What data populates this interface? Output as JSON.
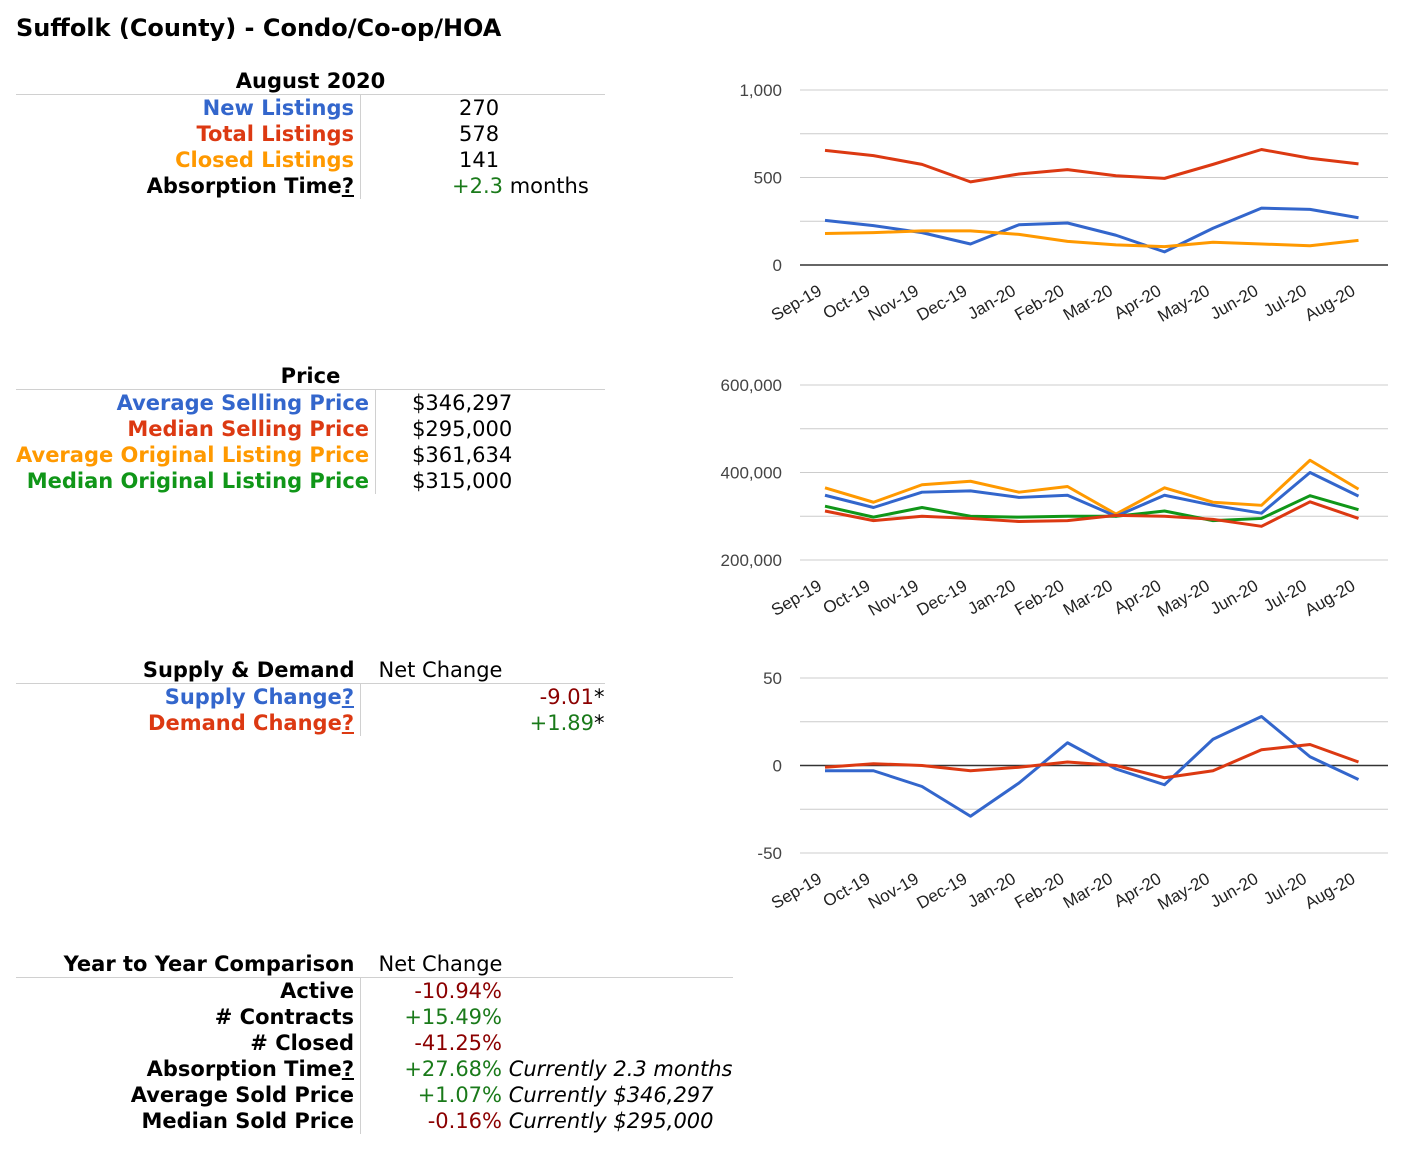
{
  "page_title": "Suffolk (County) - Condo/Co-op/HOA",
  "listings": {
    "header": "August 2020",
    "rows": [
      {
        "label": "New Listings",
        "value": "270"
      },
      {
        "label": "Total Listings",
        "value": "578"
      },
      {
        "label": "Closed Listings",
        "value": "141"
      }
    ],
    "absorption": {
      "label": "Absorption Time",
      "q": "?",
      "value": "+2.3",
      "unit": "months"
    }
  },
  "price": {
    "header": "Price",
    "rows": [
      {
        "label": "Average Selling Price",
        "value": "$346,297"
      },
      {
        "label": "Median Selling Price",
        "value": "$295,000"
      },
      {
        "label": "Average Original Listing Price",
        "value": "$361,634"
      },
      {
        "label": "Median Original Listing Price",
        "value": "$315,000"
      }
    ]
  },
  "supply_demand": {
    "header": "Supply & Demand",
    "net_header": "Net Change",
    "rows": [
      {
        "label": "Supply Change",
        "q": "?",
        "value": "-9.01",
        "star": "*"
      },
      {
        "label": "Demand Change",
        "q": "?",
        "value": "+1.89",
        "star": "*"
      }
    ]
  },
  "yoy": {
    "header": "Year to Year Comparison",
    "net_header": "Net Change",
    "rows": [
      {
        "label": "Active",
        "q": "",
        "value": "-10.94%",
        "note": ""
      },
      {
        "label": "# Contracts",
        "q": "",
        "value": "+15.49%",
        "note": ""
      },
      {
        "label": "# Closed",
        "q": "",
        "value": "-41.25%",
        "note": ""
      },
      {
        "label": "Absorption Time",
        "q": "?",
        "value": "+27.68%",
        "note": "Currently 2.3 months"
      },
      {
        "label": "Average Sold Price",
        "q": "",
        "value": "+1.07%",
        "note": "Currently $346,297"
      },
      {
        "label": "Median Sold Price",
        "q": "",
        "value": "-0.16%",
        "note": "Currently $295,000"
      }
    ]
  },
  "colors": {
    "blue": "#3366cc",
    "red": "#dc3912",
    "orange": "#ff9900",
    "green": "#109618"
  },
  "chart_data": [
    {
      "type": "line",
      "categories": [
        "Sep-19",
        "Oct-19",
        "Nov-19",
        "Dec-19",
        "Jan-20",
        "Feb-20",
        "Mar-20",
        "Apr-20",
        "May-20",
        "Jun-20",
        "Jul-20",
        "Aug-20"
      ],
      "ylim": [
        0,
        1000
      ],
      "yticks": [
        0,
        500,
        1000
      ],
      "ytick_labels": [
        "0",
        "500",
        "1,000"
      ],
      "grid": true,
      "series": [
        {
          "color": "#dc3912",
          "values": [
            655,
            625,
            575,
            475,
            520,
            545,
            510,
            495,
            575,
            660,
            610,
            578
          ]
        },
        {
          "color": "#3366cc",
          "values": [
            255,
            225,
            185,
            120,
            230,
            240,
            170,
            75,
            210,
            325,
            318,
            270
          ]
        },
        {
          "color": "#ff9900",
          "values": [
            180,
            185,
            195,
            195,
            175,
            135,
            115,
            105,
            130,
            120,
            110,
            141
          ]
        }
      ]
    },
    {
      "type": "line",
      "categories": [
        "Sep-19",
        "Oct-19",
        "Nov-19",
        "Dec-19",
        "Jan-20",
        "Feb-20",
        "Mar-20",
        "Apr-20",
        "May-20",
        "Jun-20",
        "Jul-20",
        "Aug-20"
      ],
      "ylim": [
        200000,
        600000
      ],
      "yticks": [
        200000,
        400000,
        600000
      ],
      "ytick_labels": [
        "200,000",
        "400,000",
        "600,000"
      ],
      "grid": true,
      "series": [
        {
          "color": "#ff9900",
          "values": [
            365000,
            332000,
            372000,
            380000,
            355000,
            368000,
            305000,
            365000,
            332000,
            325000,
            428000,
            362000
          ]
        },
        {
          "color": "#3366cc",
          "values": [
            348000,
            320000,
            355000,
            358000,
            343000,
            348000,
            300000,
            348000,
            325000,
            307000,
            400000,
            346000
          ]
        },
        {
          "color": "#109618",
          "values": [
            323000,
            298000,
            320000,
            300000,
            298000,
            300000,
            300000,
            312000,
            290000,
            295000,
            347000,
            315000
          ]
        },
        {
          "color": "#dc3912",
          "values": [
            312000,
            290000,
            300000,
            295000,
            288000,
            290000,
            302000,
            300000,
            293000,
            277000,
            333000,
            295000
          ]
        }
      ]
    },
    {
      "type": "line",
      "categories": [
        "Sep-19",
        "Oct-19",
        "Nov-19",
        "Dec-19",
        "Jan-20",
        "Feb-20",
        "Mar-20",
        "Apr-20",
        "May-20",
        "Jun-20",
        "Jul-20",
        "Aug-20"
      ],
      "ylim": [
        -50,
        50
      ],
      "yticks": [
        -50,
        0,
        50
      ],
      "ytick_labels": [
        "-50",
        "0",
        "50"
      ],
      "grid": true,
      "series": [
        {
          "color": "#3366cc",
          "values": [
            -3,
            -3,
            -12,
            -29,
            -10,
            13,
            -2,
            -11,
            15,
            28,
            5,
            -8
          ]
        },
        {
          "color": "#dc3912",
          "values": [
            -1,
            1,
            0,
            -3,
            -1,
            2,
            0,
            -7,
            -3,
            9,
            12,
            2
          ]
        }
      ]
    }
  ]
}
